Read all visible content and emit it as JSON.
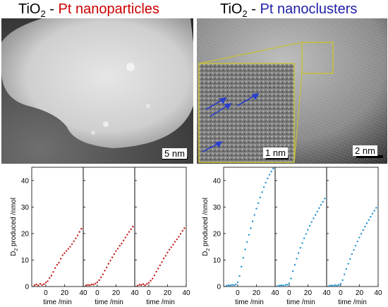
{
  "left_panel": {
    "title_prefix": "TiO",
    "title_sub": "2",
    "title_sep": " - ",
    "title_main": "Pt nanoparticles",
    "title_color": "#cc0000",
    "scalebar_label": "5 nm"
  },
  "right_panel": {
    "title_prefix": "TiO",
    "title_sub": "2",
    "title_sep": " - ",
    "title_main": "Pt nanoclusters",
    "title_color": "#1f1fa8",
    "scalebar_label": "2 nm",
    "inset_scalebar_label": "1 nm",
    "inset_frame_color": "#c7c03a",
    "arrow_color": "#2a3fcc"
  },
  "axes_text": {
    "ylabel_main": "D",
    "ylabel_sub": "2",
    "ylabel_rest": " produced /nmol",
    "xlabel": "time /min"
  },
  "chart_data": [
    {
      "type": "scatter",
      "group": "TiO2 - Pt nanoparticles",
      "color": "#c21a1a",
      "ylabel": "D2 produced /nmol",
      "xlabel": "time /min",
      "xlim": [
        -15,
        40
      ],
      "ylim": [
        0,
        45
      ],
      "xticks": [
        0,
        20,
        40
      ],
      "yticks": [
        0,
        10,
        20,
        30,
        40
      ],
      "panels": [
        {
          "x": [
            -12,
            -10,
            -8,
            -6,
            -4,
            -2,
            0,
            2,
            4,
            6,
            8,
            10,
            12,
            14,
            16,
            18,
            20,
            22,
            24,
            26,
            28,
            30,
            32,
            34,
            36,
            38
          ],
          "y": [
            0.5,
            0.8,
            0.4,
            1.0,
            0.6,
            0.9,
            1.5,
            2.0,
            3.2,
            4.1,
            5.5,
            7.0,
            8.2,
            9.0,
            10.5,
            11.8,
            12.6,
            13.4,
            14.2,
            15.0,
            16.0,
            17.1,
            18.2,
            19.3,
            20.6,
            21.8
          ]
        },
        {
          "x": [
            -12,
            -10,
            -8,
            -6,
            -4,
            -2,
            0,
            2,
            4,
            6,
            8,
            10,
            12,
            14,
            16,
            18,
            20,
            22,
            24,
            26,
            28,
            30,
            32,
            34,
            36,
            38
          ],
          "y": [
            0.4,
            0.6,
            0.5,
            0.8,
            0.7,
            1.1,
            1.6,
            2.4,
            3.5,
            4.6,
            6.0,
            7.2,
            8.6,
            9.8,
            11.0,
            12.2,
            13.4,
            14.3,
            15.4,
            16.2,
            17.4,
            18.5,
            19.6,
            20.6,
            21.6,
            22.6
          ]
        },
        {
          "x": [
            -12,
            -10,
            -8,
            -6,
            -4,
            -2,
            0,
            2,
            4,
            6,
            8,
            10,
            12,
            14,
            16,
            18,
            20,
            22,
            24,
            26,
            28,
            30,
            32,
            34,
            36,
            38
          ],
          "y": [
            0.3,
            0.7,
            0.6,
            0.9,
            0.5,
            1.0,
            1.4,
            2.2,
            3.0,
            4.2,
            5.6,
            6.8,
            8.0,
            9.2,
            10.6,
            11.6,
            12.8,
            13.9,
            14.8,
            15.8,
            16.9,
            17.8,
            18.8,
            19.9,
            21.0,
            22.0
          ]
        }
      ]
    },
    {
      "type": "scatter",
      "group": "TiO2 - Pt nanoclusters",
      "color": "#1f8fd1",
      "ylabel": "D2 produced /nmol",
      "xlabel": "time /min",
      "xlim": [
        -15,
        40
      ],
      "ylim": [
        0,
        45
      ],
      "xticks": [
        0,
        20,
        40
      ],
      "yticks": [
        0,
        10,
        20,
        30,
        40
      ],
      "panels": [
        {
          "x": [
            -12,
            -10,
            -8,
            -6,
            -4,
            -2,
            0,
            2,
            4,
            6,
            8,
            10,
            12,
            14,
            16,
            18,
            20,
            22,
            24,
            26,
            28,
            30,
            32,
            34,
            36,
            38
          ],
          "y": [
            0.3,
            0.5,
            0.4,
            0.6,
            0.5,
            0.8,
            1.6,
            4.0,
            7.5,
            10.8,
            14.0,
            16.8,
            19.5,
            22.0,
            24.6,
            27.0,
            29.4,
            31.5,
            33.6,
            35.6,
            37.5,
            39.2,
            40.8,
            42.2,
            43.4,
            44.5
          ]
        },
        {
          "x": [
            -12,
            -10,
            -8,
            -6,
            -4,
            -2,
            0,
            2,
            4,
            6,
            8,
            10,
            12,
            14,
            16,
            18,
            20,
            22,
            24,
            26,
            28,
            30,
            32,
            34,
            36,
            38
          ],
          "y": [
            0.2,
            0.4,
            0.5,
            0.3,
            0.6,
            0.7,
            1.2,
            3.0,
            5.8,
            8.2,
            10.5,
            12.6,
            14.6,
            16.4,
            18.2,
            19.8,
            21.4,
            22.9,
            24.3,
            25.7,
            27.0,
            28.3,
            29.6,
            30.8,
            32.0,
            33.2
          ]
        },
        {
          "x": [
            -12,
            -10,
            -8,
            -6,
            -4,
            -2,
            0,
            2,
            4,
            6,
            8,
            10,
            12,
            14,
            16,
            18,
            20,
            22,
            24,
            26,
            28,
            30,
            32,
            34,
            36,
            38
          ],
          "y": [
            0.3,
            0.4,
            0.3,
            0.5,
            0.4,
            0.6,
            1.0,
            2.4,
            4.6,
            6.6,
            8.6,
            10.4,
            12.2,
            13.8,
            15.4,
            17.0,
            18.5,
            19.9,
            21.3,
            22.6,
            23.9,
            25.1,
            26.3,
            27.5,
            28.6,
            29.7
          ]
        }
      ]
    }
  ]
}
